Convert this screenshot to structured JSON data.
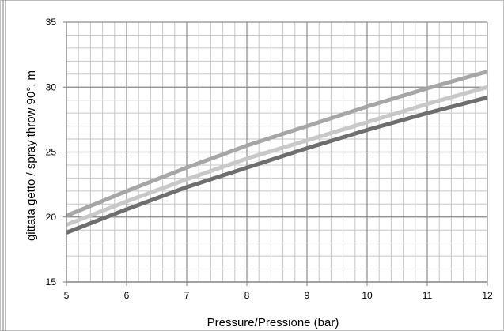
{
  "chart_data": {
    "type": "line",
    "title": "",
    "xlabel": "Pressure/Pressione (bar)",
    "ylabel": "gittata getto  / spray throw 90°, m",
    "xlim": [
      5,
      12
    ],
    "ylim": [
      15,
      35
    ],
    "x_ticks": [
      "5",
      "6",
      "7",
      "8",
      "9",
      "10",
      "11",
      "12"
    ],
    "y_ticks": [
      "15",
      "20",
      "25",
      "30",
      "35"
    ],
    "x_minor_step": 0.2,
    "y_minor_step": 1,
    "grid": true,
    "legend": "none",
    "series": [
      {
        "color": "#a6a6a6",
        "x": [
          5,
          6,
          7,
          8,
          9,
          10,
          11,
          12
        ],
        "y": [
          20.1,
          22.0,
          23.8,
          25.5,
          27.0,
          28.5,
          29.9,
          31.2
        ]
      },
      {
        "color": "#c8c8c8",
        "x": [
          5,
          6,
          7,
          8,
          9,
          10,
          11,
          12
        ],
        "y": [
          19.4,
          21.2,
          22.9,
          24.5,
          25.9,
          27.3,
          28.7,
          30.0
        ]
      },
      {
        "color": "#6e6e6e",
        "x": [
          5,
          6,
          7,
          8,
          9,
          10,
          11,
          12
        ],
        "y": [
          18.8,
          20.6,
          22.3,
          23.8,
          25.3,
          26.7,
          28.0,
          29.2
        ]
      }
    ]
  }
}
